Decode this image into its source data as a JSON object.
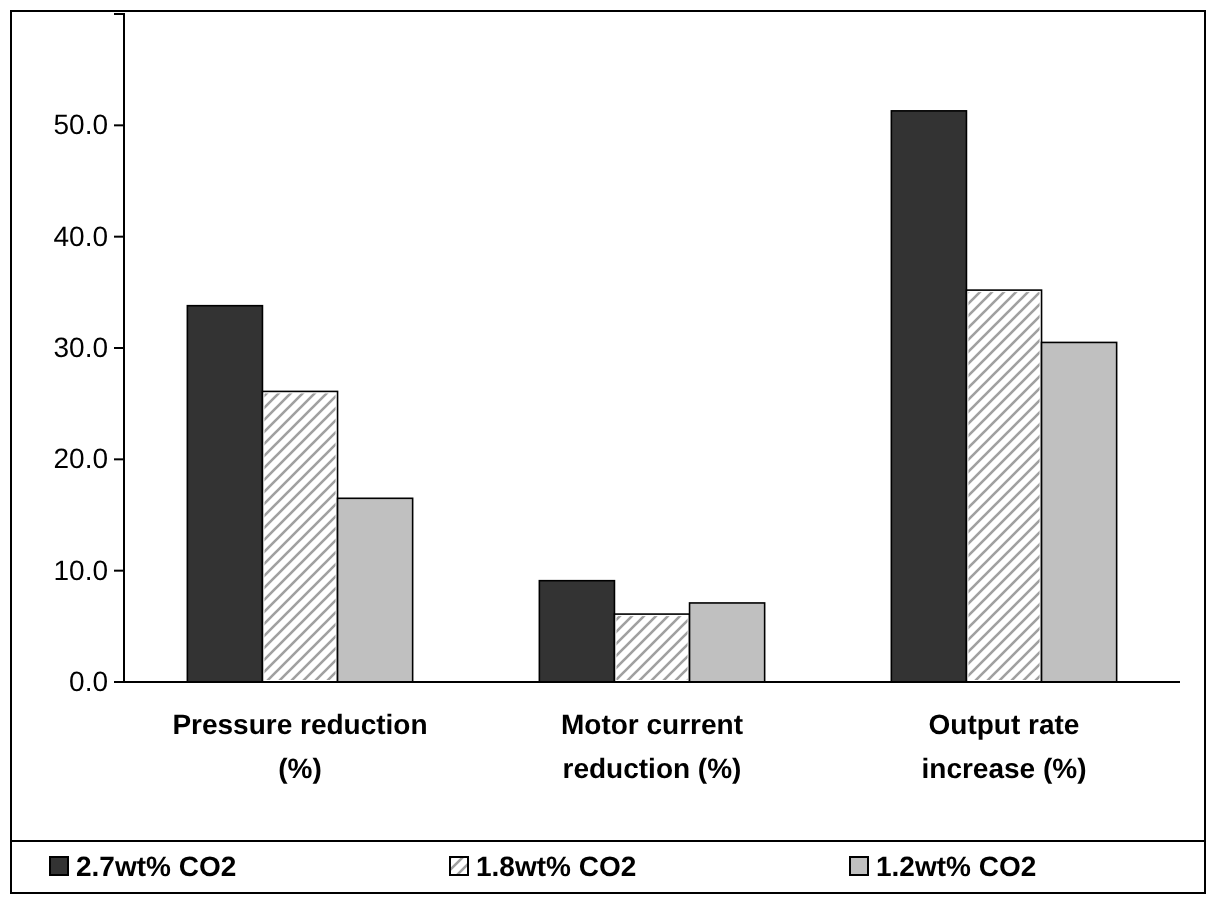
{
  "chart_data": {
    "type": "bar",
    "categories": [
      "Pressure reduction (%)",
      "Motor current reduction (%)",
      "Output rate increase (%)"
    ],
    "series": [
      {
        "name": "2.7wt% CO2",
        "color": "#333333",
        "values": [
          33.8,
          9.1,
          51.3
        ]
      },
      {
        "name": "1.8wt% CO2",
        "color": "#ffffff",
        "values": [
          26.1,
          6.1,
          35.2
        ]
      },
      {
        "name": "1.2wt% CO2",
        "color": "#c0c0c0",
        "values": [
          16.5,
          7.1,
          30.5
        ]
      }
    ],
    "ylim": [
      0,
      60
    ],
    "yticks": [
      {
        "value": 0,
        "label": "0.0"
      },
      {
        "value": 10,
        "label": "10.0"
      },
      {
        "value": 20,
        "label": "20.0"
      },
      {
        "value": 30,
        "label": "30.0"
      },
      {
        "value": 40,
        "label": "40.0"
      },
      {
        "value": 50,
        "label": "50.0"
      }
    ],
    "grid": false,
    "legend": "bottom"
  }
}
